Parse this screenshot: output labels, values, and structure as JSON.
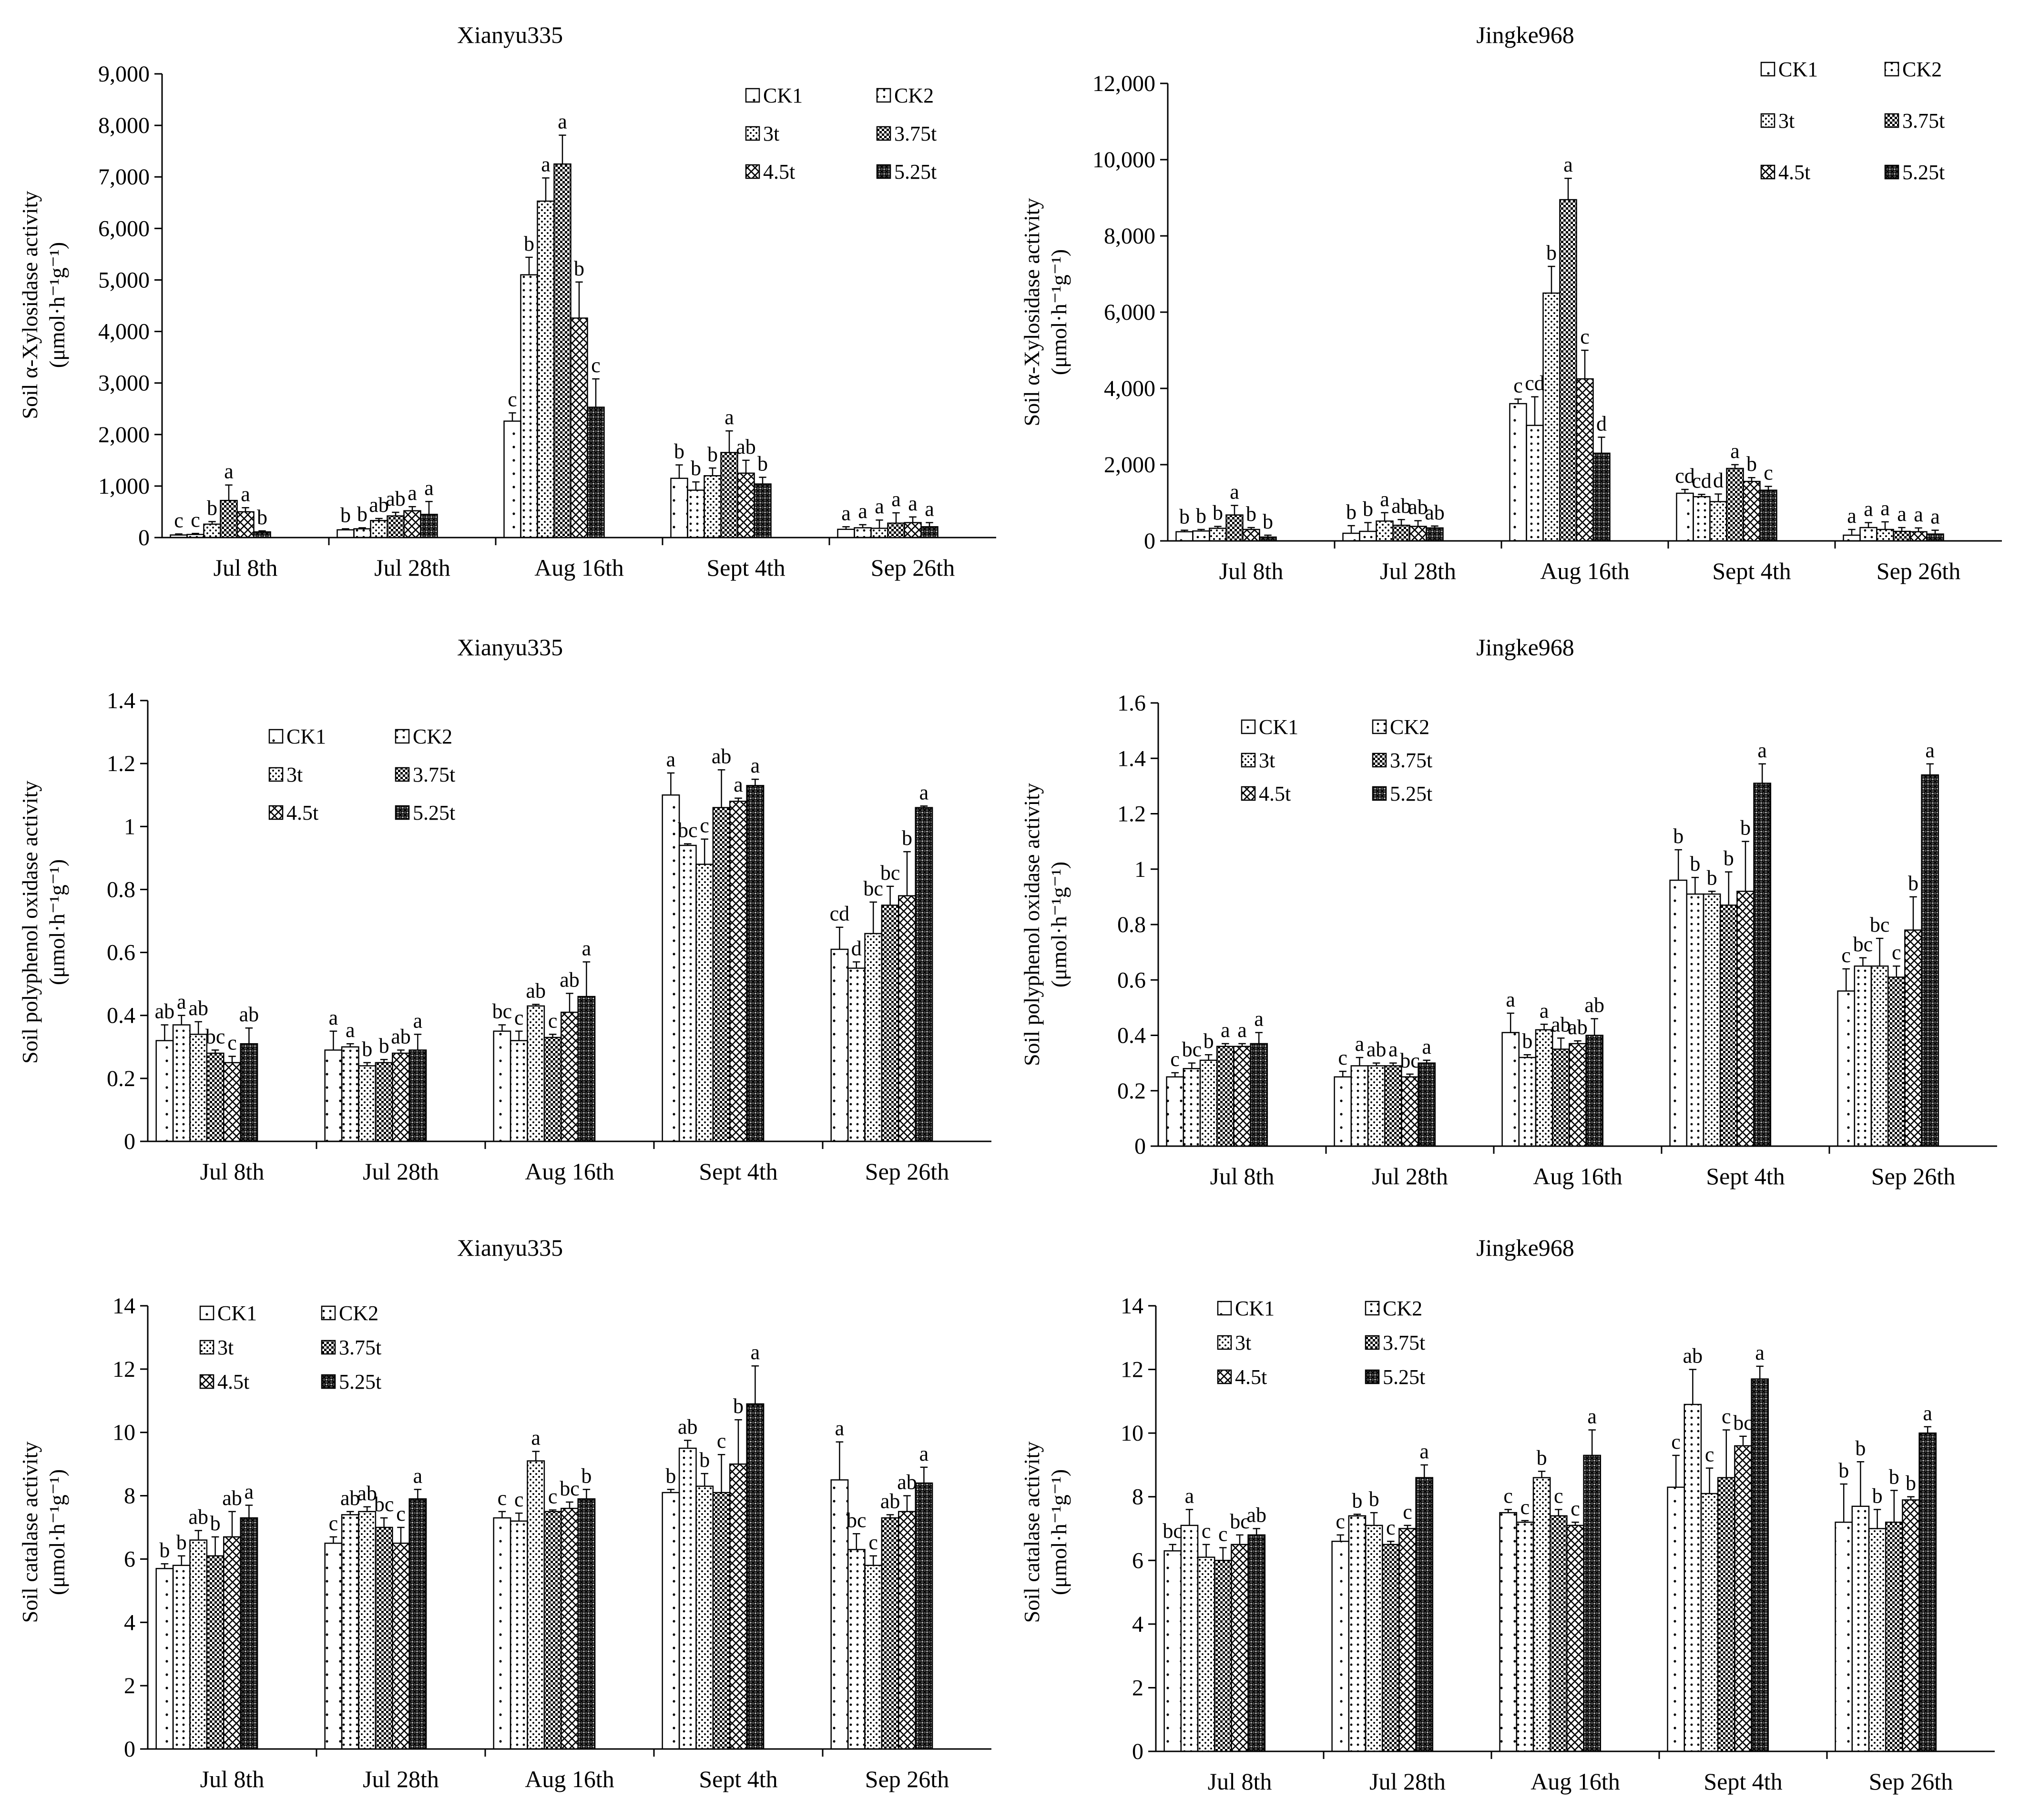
{
  "figure": {
    "series_names": [
      "CK1",
      "CK2",
      "3t",
      "3.75t",
      "4.5t",
      "5.25t"
    ],
    "categories": [
      "Jul 8th",
      "Jul 28th",
      "Aug 16th",
      "Sept 4th",
      "Sep 26th"
    ]
  },
  "chart_data": [
    {
      "id": "xyl-xianyu",
      "type": "bar",
      "title": "Xianyu335",
      "ylabel_line1": "Soil α-Xylosidase activity",
      "ylabel_line2": "(μmol·h⁻¹g⁻¹)",
      "ylim": [
        0,
        9000
      ],
      "ytick_step": 1000,
      "yticks": [
        "0",
        "1,000",
        "2,000",
        "3,000",
        "4,000",
        "5,000",
        "6,000",
        "7,000",
        "8,000",
        "9,000"
      ],
      "legend_position": "top-right",
      "categories": [
        "Jul 8th",
        "Jul 28th",
        "Aug 16th",
        "Sept 4th",
        "Sep 26th"
      ],
      "series": [
        {
          "name": "CK1",
          "values": [
            50,
            150,
            2260,
            1150,
            160
          ],
          "errors": [
            20,
            20,
            160,
            260,
            50
          ]
        },
        {
          "name": "CK2",
          "values": [
            60,
            170,
            5100,
            920,
            190
          ],
          "errors": [
            20,
            20,
            340,
            160,
            60
          ]
        },
        {
          "name": "3t",
          "values": [
            260,
            330,
            6530,
            1200,
            180
          ],
          "errors": [
            50,
            40,
            450,
            150,
            160
          ]
        },
        {
          "name": "3.75t",
          "values": [
            720,
            420,
            7250,
            1650,
            280
          ],
          "errors": [
            300,
            70,
            560,
            420,
            200
          ]
        },
        {
          "name": "4.5t",
          "values": [
            500,
            520,
            4260,
            1250,
            290
          ],
          "errors": [
            80,
            80,
            700,
            250,
            110
          ]
        },
        {
          "name": "5.25t",
          "values": [
            110,
            450,
            2530,
            1040,
            210
          ],
          "errors": [
            20,
            250,
            550,
            130,
            80
          ]
        }
      ],
      "letters": [
        [
          "c",
          "c",
          "b",
          "a",
          "a",
          "b"
        ],
        [
          "b",
          "b",
          "ab",
          "ab",
          "a",
          "a"
        ],
        [
          "c",
          "b",
          "a",
          "a",
          "b",
          "c"
        ],
        [
          "b",
          "b",
          "b",
          "a",
          "ab",
          "b"
        ],
        [
          "a",
          "a",
          "a",
          "a",
          "a",
          "a"
        ]
      ]
    },
    {
      "id": "xyl-jingke",
      "type": "bar",
      "title": "Jingke968",
      "ylabel_line1": "Soil α-Xylosidase activity",
      "ylabel_line2": "(μmol·h⁻¹g⁻¹)",
      "ylim": [
        0,
        12000
      ],
      "ytick_step": 2000,
      "yticks": [
        "0",
        "2,000",
        "4,000",
        "6,000",
        "8,000",
        "10,000",
        "12,000"
      ],
      "legend_position": "top-right",
      "categories": [
        "Jul 8th",
        "Jul 28th",
        "Aug 16th",
        "Sept 4th",
        "Sep 26th"
      ],
      "series": [
        {
          "name": "CK1",
          "values": [
            240,
            200,
            3600,
            1250,
            150
          ],
          "errors": [
            40,
            200,
            120,
            100,
            150
          ]
        },
        {
          "name": "CK2",
          "values": [
            260,
            250,
            3030,
            1160,
            350
          ],
          "errors": [
            40,
            230,
            750,
            60,
            130
          ]
        },
        {
          "name": "3t",
          "values": [
            330,
            520,
            6500,
            1030,
            300
          ],
          "errors": [
            50,
            220,
            700,
            200,
            200
          ]
        },
        {
          "name": "3.75t",
          "values": [
            680,
            410,
            8950,
            1900,
            250
          ],
          "errors": [
            250,
            150,
            560,
            100,
            100
          ]
        },
        {
          "name": "4.5t",
          "values": [
            300,
            380,
            4250,
            1560,
            240
          ],
          "errors": [
            50,
            150,
            750,
            100,
            100
          ]
        },
        {
          "name": "5.25t",
          "values": [
            100,
            340,
            2300,
            1330,
            180
          ],
          "errors": [
            50,
            50,
            420,
            100,
            100
          ]
        }
      ],
      "letters": [
        [
          "b",
          "b",
          "b",
          "a",
          "b",
          "b"
        ],
        [
          "b",
          "b",
          "a",
          "ab",
          "ab",
          "ab"
        ],
        [
          "c",
          "cd",
          "b",
          "a",
          "c",
          "d"
        ],
        [
          "cd",
          "cd",
          "d",
          "a",
          "b",
          "c"
        ],
        [
          "a",
          "a",
          "a",
          "a",
          "a",
          "a"
        ]
      ]
    },
    {
      "id": "ppo-xianyu",
      "type": "bar",
      "title": "Xianyu335",
      "ylabel_line1": "Soil polyphenol oxidase activity",
      "ylabel_line2": "(μmol·h⁻¹g⁻¹)",
      "ylim": [
        0,
        1.4
      ],
      "ytick_step": 0.2,
      "yticks": [
        "0",
        "0.2",
        "0.4",
        "0.6",
        "0.8",
        "1",
        "1.2",
        "1.4"
      ],
      "legend_position": "top-left",
      "categories": [
        "Jul 8th",
        "Jul 28th",
        "Aug 16th",
        "Sept 4th",
        "Sep 26th"
      ],
      "series": [
        {
          "name": "CK1",
          "values": [
            0.32,
            0.29,
            0.35,
            1.1,
            0.61
          ],
          "errors": [
            0.05,
            0.06,
            0.02,
            0.07,
            0.07
          ]
        },
        {
          "name": "CK2",
          "values": [
            0.37,
            0.3,
            0.32,
            0.94,
            0.55
          ],
          "errors": [
            0.03,
            0.01,
            0.03,
            0.005,
            0.02
          ]
        },
        {
          "name": "3t",
          "values": [
            0.34,
            0.24,
            0.43,
            0.88,
            0.66
          ],
          "errors": [
            0.04,
            0.01,
            0.005,
            0.08,
            0.1
          ]
        },
        {
          "name": "3.75t",
          "values": [
            0.28,
            0.25,
            0.33,
            1.06,
            0.75
          ],
          "errors": [
            0.01,
            0.01,
            0.01,
            0.12,
            0.06
          ]
        },
        {
          "name": "4.5t",
          "values": [
            0.25,
            0.28,
            0.41,
            1.08,
            0.78
          ],
          "errors": [
            0.02,
            0.01,
            0.06,
            0.01,
            0.14
          ]
        },
        {
          "name": "5.25t",
          "values": [
            0.31,
            0.29,
            0.46,
            1.13,
            1.06
          ],
          "errors": [
            0.05,
            0.05,
            0.11,
            0.02,
            0.005
          ]
        }
      ],
      "letters": [
        [
          "ab",
          "a",
          "ab",
          "bc",
          "c",
          "ab"
        ],
        [
          "a",
          "a",
          "b",
          "b",
          "ab",
          "a"
        ],
        [
          "bc",
          "c",
          "ab",
          "c",
          "ab",
          "a"
        ],
        [
          "a",
          "bc",
          "c",
          "ab",
          "a",
          "a"
        ],
        [
          "cd",
          "d",
          "bc",
          "bc",
          "b",
          "a"
        ]
      ]
    },
    {
      "id": "ppo-jingke",
      "type": "bar",
      "title": "Jingke968",
      "ylabel_line1": "Soil polyphenol oxidase activity",
      "ylabel_line2": "(μmol·h⁻¹g⁻¹)",
      "ylim": [
        0,
        1.6
      ],
      "ytick_step": 0.2,
      "yticks": [
        "0",
        "0.2",
        "0.4",
        "0.6",
        "0.8",
        "1",
        "1.2",
        "1.4",
        "1.6"
      ],
      "legend_position": "top-left",
      "categories": [
        "Jul 8th",
        "Jul 28th",
        "Aug 16th",
        "Sept 4th",
        "Sep 26th"
      ],
      "series": [
        {
          "name": "CK1",
          "values": [
            0.25,
            0.25,
            0.41,
            0.96,
            0.56
          ],
          "errors": [
            0.015,
            0.02,
            0.07,
            0.11,
            0.08
          ]
        },
        {
          "name": "CK2",
          "values": [
            0.28,
            0.29,
            0.32,
            0.91,
            0.65
          ],
          "errors": [
            0.02,
            0.03,
            0.01,
            0.06,
            0.03
          ]
        },
        {
          "name": "3t",
          "values": [
            0.31,
            0.29,
            0.42,
            0.91,
            0.65
          ],
          "errors": [
            0.02,
            0.01,
            0.02,
            0.01,
            0.1
          ]
        },
        {
          "name": "3.75t",
          "values": [
            0.36,
            0.29,
            0.35,
            0.87,
            0.61
          ],
          "errors": [
            0.01,
            0.01,
            0.04,
            0.12,
            0.04
          ]
        },
        {
          "name": "4.5t",
          "values": [
            0.36,
            0.25,
            0.37,
            0.92,
            0.78
          ],
          "errors": [
            0.01,
            0.01,
            0.01,
            0.18,
            0.12
          ]
        },
        {
          "name": "5.25t",
          "values": [
            0.37,
            0.3,
            0.4,
            1.31,
            1.34
          ],
          "errors": [
            0.04,
            0.01,
            0.06,
            0.07,
            0.04
          ]
        }
      ],
      "letters": [
        [
          "c",
          "bc",
          "b",
          "a",
          "a",
          "a"
        ],
        [
          "c",
          "a",
          "ab",
          "a",
          "bc",
          "a"
        ],
        [
          "a",
          "b",
          "a",
          "ab",
          "ab",
          "ab"
        ],
        [
          "b",
          "b",
          "b",
          "b",
          "b",
          "a"
        ],
        [
          "c",
          "bc",
          "bc",
          "c",
          "b",
          "a"
        ]
      ]
    },
    {
      "id": "cat-xianyu",
      "type": "bar",
      "title": "Xianyu335",
      "ylabel_line1": "Soil catalase activity",
      "ylabel_line2": "(μmol·h⁻¹g⁻¹)",
      "ylim": [
        0,
        14
      ],
      "ytick_step": 2,
      "yticks": [
        "0",
        "2",
        "4",
        "6",
        "8",
        "10",
        "12",
        "14"
      ],
      "legend_position": "top-left",
      "categories": [
        "Jul 8th",
        "Jul 28th",
        "Aug 16th",
        "Sept 4th",
        "Sep 26th"
      ],
      "series": [
        {
          "name": "CK1",
          "values": [
            5.7,
            6.5,
            7.3,
            8.1,
            8.5
          ],
          "errors": [
            0.15,
            0.2,
            0.2,
            0.1,
            1.2
          ]
        },
        {
          "name": "CK2",
          "values": [
            5.8,
            7.4,
            7.2,
            9.5,
            6.3
          ],
          "errors": [
            0.3,
            0.1,
            0.25,
            0.25,
            0.5
          ]
        },
        {
          "name": "3t",
          "values": [
            6.6,
            7.5,
            9.1,
            8.3,
            5.8
          ],
          "errors": [
            0.3,
            0.15,
            0.3,
            0.4,
            0.3
          ]
        },
        {
          "name": "3.75t",
          "values": [
            6.1,
            7.0,
            7.5,
            8.1,
            7.3
          ],
          "errors": [
            0.6,
            0.3,
            0.05,
            1.2,
            0.1
          ]
        },
        {
          "name": "4.5t",
          "values": [
            6.7,
            6.5,
            7.6,
            9.0,
            7.5
          ],
          "errors": [
            0.8,
            0.5,
            0.2,
            1.4,
            0.5
          ]
        },
        {
          "name": "5.25t",
          "values": [
            7.3,
            7.9,
            7.9,
            10.9,
            8.4
          ],
          "errors": [
            0.4,
            0.3,
            0.3,
            1.2,
            0.5
          ]
        }
      ],
      "letters": [
        [
          "b",
          "b",
          "ab",
          "b",
          "ab",
          "a"
        ],
        [
          "c",
          "ab",
          "ab",
          "bc",
          "c",
          "a"
        ],
        [
          "c",
          "c",
          "a",
          "c",
          "bc",
          "b"
        ],
        [
          "b",
          "ab",
          "b",
          "c",
          "b",
          "a"
        ],
        [
          "a",
          "bc",
          "c",
          "ab",
          "ab",
          "a"
        ]
      ]
    },
    {
      "id": "cat-jingke",
      "type": "bar",
      "title": "Jingke968",
      "ylabel_line1": "Soil catalase activity",
      "ylabel_line2": "(μmol·h⁻¹g⁻¹)",
      "ylim": [
        0,
        14
      ],
      "ytick_step": 2,
      "yticks": [
        "0",
        "2",
        "4",
        "6",
        "8",
        "10",
        "12",
        "14"
      ],
      "legend_position": "top-left",
      "categories": [
        "Jul 8th",
        "Jul 28th",
        "Aug 16th",
        "Sept 4th",
        "Sep 26th"
      ],
      "series": [
        {
          "name": "CK1",
          "values": [
            6.3,
            6.6,
            7.5,
            8.3,
            7.2
          ],
          "errors": [
            0.2,
            0.2,
            0.1,
            1.0,
            1.2
          ]
        },
        {
          "name": "CK2",
          "values": [
            7.1,
            7.4,
            7.2,
            10.9,
            7.7
          ],
          "errors": [
            0.5,
            0.05,
            0.05,
            1.1,
            1.4
          ]
        },
        {
          "name": "3t",
          "values": [
            6.1,
            7.1,
            8.6,
            8.1,
            7.0
          ],
          "errors": [
            0.4,
            0.4,
            0.2,
            0.8,
            0.6
          ]
        },
        {
          "name": "3.75t",
          "values": [
            6.0,
            6.5,
            7.4,
            8.6,
            7.2
          ],
          "errors": [
            0.4,
            0.1,
            0.2,
            1.5,
            1.0
          ]
        },
        {
          "name": "4.5t",
          "values": [
            6.5,
            7.0,
            7.1,
            9.6,
            7.9
          ],
          "errors": [
            0.3,
            0.1,
            0.1,
            0.3,
            0.1
          ]
        },
        {
          "name": "5.25t",
          "values": [
            6.8,
            8.6,
            9.3,
            11.7,
            10.0
          ],
          "errors": [
            0.2,
            0.4,
            0.8,
            0.4,
            0.2
          ]
        }
      ],
      "letters": [
        [
          "bc",
          "a",
          "c",
          "c",
          "bc",
          "ab"
        ],
        [
          "c",
          "b",
          "b",
          "c",
          "c",
          "a"
        ],
        [
          "c",
          "c",
          "b",
          "c",
          "c",
          "a"
        ],
        [
          "c",
          "ab",
          "c",
          "c",
          "bc",
          "a"
        ],
        [
          "b",
          "b",
          "b",
          "b",
          "b",
          "a"
        ]
      ]
    }
  ]
}
